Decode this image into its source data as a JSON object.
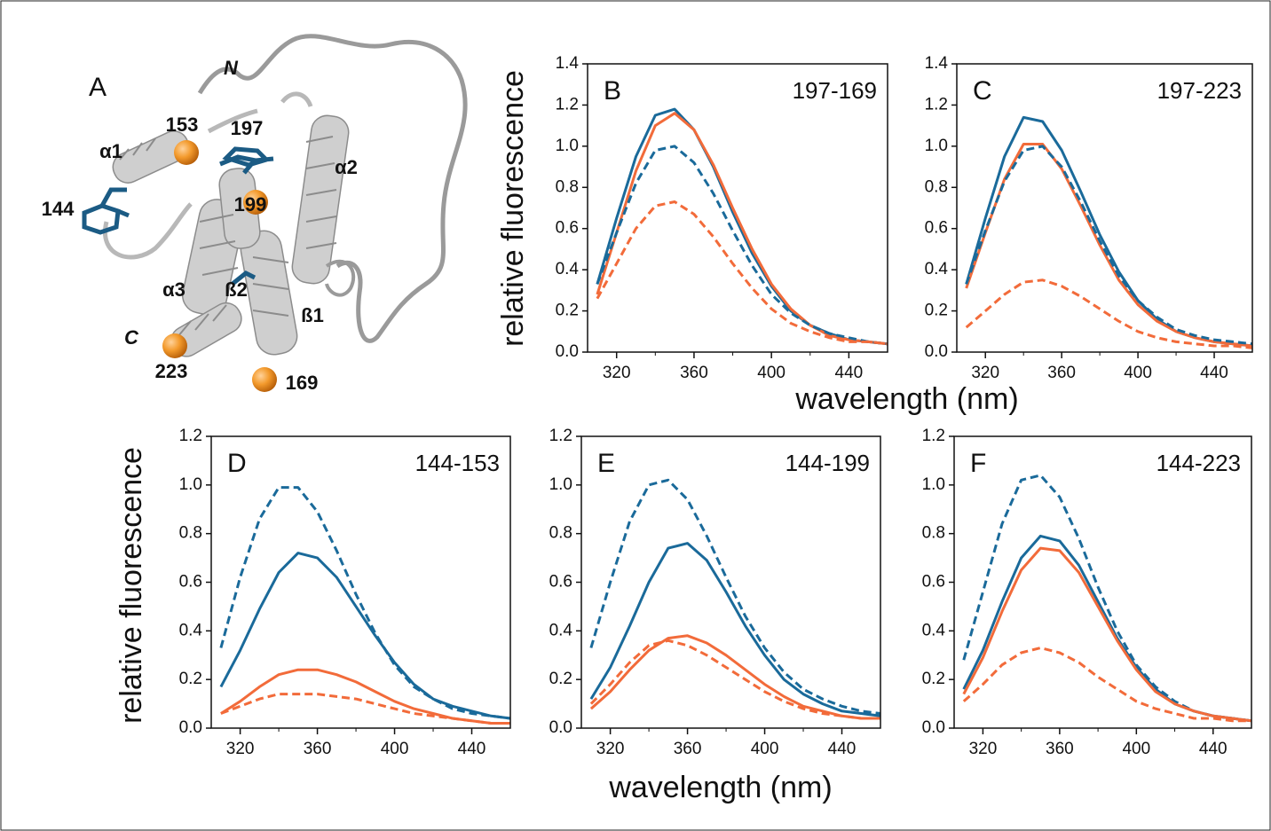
{
  "structure": {
    "panel": "A",
    "labels": [
      "N",
      "153",
      "197",
      "α1",
      "144",
      "199",
      "α2",
      "α3",
      "ß2",
      "ß1",
      "C",
      "223",
      "169"
    ]
  },
  "chart_data": [
    {
      "type": "line",
      "panel": "B",
      "title": "197-169",
      "ylabel": "relative fluorescence",
      "xlabel": "wavelength (nm)",
      "x": [
        310,
        320,
        330,
        340,
        350,
        360,
        370,
        380,
        390,
        400,
        410,
        420,
        430,
        440,
        450,
        460
      ],
      "xlim": [
        305,
        460
      ],
      "xticks": [
        320,
        360,
        400,
        440
      ],
      "xminorticks": [
        340,
        380,
        420
      ],
      "ylim": [
        0,
        1.4
      ],
      "yticks": [
        {
          "value": 0,
          "label": "0.0"
        },
        {
          "value": 0.2,
          "label": "0.2"
        },
        {
          "value": 0.4,
          "label": "0.4"
        },
        {
          "value": 0.6,
          "label": "0.6"
        },
        {
          "value": 0.8,
          "label": "0.8"
        },
        {
          "value": 1,
          "label": "1.0"
        },
        {
          "value": 1.2,
          "label": "1.2"
        },
        {
          "value": 1.4,
          "label": "1.4"
        }
      ],
      "series": [
        {
          "color": "#1a6a9a",
          "dashed": false,
          "values": [
            0.33,
            0.65,
            0.95,
            1.15,
            1.18,
            1.08,
            0.9,
            0.68,
            0.48,
            0.32,
            0.2,
            0.13,
            0.09,
            0.06,
            0.05,
            0.04
          ]
        },
        {
          "color": "#f26b3a",
          "dashed": false,
          "values": [
            0.28,
            0.58,
            0.88,
            1.1,
            1.16,
            1.08,
            0.91,
            0.7,
            0.5,
            0.33,
            0.21,
            0.13,
            0.08,
            0.06,
            0.05,
            0.04
          ]
        },
        {
          "color": "#1a6a9a",
          "dashed": true,
          "values": [
            0.33,
            0.58,
            0.82,
            0.98,
            1.0,
            0.92,
            0.77,
            0.59,
            0.42,
            0.28,
            0.19,
            0.13,
            0.09,
            0.07,
            0.05,
            0.04
          ]
        },
        {
          "color": "#f26b3a",
          "dashed": true,
          "values": [
            0.26,
            0.43,
            0.6,
            0.71,
            0.73,
            0.67,
            0.56,
            0.43,
            0.31,
            0.21,
            0.14,
            0.1,
            0.07,
            0.05,
            0.05,
            0.04
          ]
        }
      ]
    },
    {
      "type": "line",
      "panel": "C",
      "title": "197-223",
      "x": [
        310,
        320,
        330,
        340,
        350,
        360,
        370,
        380,
        390,
        400,
        410,
        420,
        430,
        440,
        450,
        460
      ],
      "xlim": [
        305,
        460
      ],
      "xticks": [
        320,
        360,
        400,
        440
      ],
      "xminorticks": [
        340,
        380,
        420
      ],
      "ylim": [
        0,
        1.4
      ],
      "yticks": [
        {
          "value": 0,
          "label": "0.0"
        },
        {
          "value": 0.2,
          "label": "0.2"
        },
        {
          "value": 0.4,
          "label": "0.4"
        },
        {
          "value": 0.6,
          "label": "0.6"
        },
        {
          "value": 0.8,
          "label": "0.8"
        },
        {
          "value": 1,
          "label": "1.0"
        },
        {
          "value": 1.2,
          "label": "1.2"
        },
        {
          "value": 1.4,
          "label": "1.4"
        }
      ],
      "series": [
        {
          "color": "#1a6a9a",
          "dashed": false,
          "values": [
            0.33,
            0.65,
            0.95,
            1.14,
            1.12,
            0.98,
            0.78,
            0.57,
            0.39,
            0.25,
            0.16,
            0.1,
            0.07,
            0.05,
            0.04,
            0.03
          ]
        },
        {
          "color": "#f26b3a",
          "dashed": false,
          "values": [
            0.31,
            0.58,
            0.84,
            1.01,
            1.01,
            0.89,
            0.71,
            0.52,
            0.35,
            0.23,
            0.15,
            0.1,
            0.07,
            0.05,
            0.04,
            0.03
          ]
        },
        {
          "color": "#1a6a9a",
          "dashed": true,
          "values": [
            0.33,
            0.59,
            0.83,
            0.98,
            1.0,
            0.9,
            0.73,
            0.54,
            0.37,
            0.25,
            0.17,
            0.11,
            0.08,
            0.06,
            0.05,
            0.04
          ]
        },
        {
          "color": "#f26b3a",
          "dashed": true,
          "values": [
            0.12,
            0.2,
            0.28,
            0.34,
            0.35,
            0.32,
            0.27,
            0.21,
            0.15,
            0.1,
            0.07,
            0.05,
            0.04,
            0.03,
            0.03,
            0.02
          ]
        }
      ]
    },
    {
      "type": "line",
      "panel": "D",
      "title": "144-153",
      "ylabel": "relative fluorescence",
      "x": [
        310,
        320,
        330,
        340,
        350,
        360,
        370,
        380,
        390,
        400,
        410,
        420,
        430,
        440,
        450,
        460
      ],
      "xlim": [
        305,
        460
      ],
      "xticks": [
        320,
        360,
        400,
        440
      ],
      "xminorticks": [
        340,
        380,
        420
      ],
      "ylim": [
        0,
        1.2
      ],
      "yticks": [
        {
          "value": 0,
          "label": "0.0"
        },
        {
          "value": 0.2,
          "label": "0.2"
        },
        {
          "value": 0.4,
          "label": "0.4"
        },
        {
          "value": 0.6,
          "label": "0.6"
        },
        {
          "value": 0.8,
          "label": "0.8"
        },
        {
          "value": 1,
          "label": "1.0"
        },
        {
          "value": 1.2,
          "label": "1.2"
        }
      ],
      "series": [
        {
          "color": "#1a6a9a",
          "dashed": true,
          "values": [
            0.33,
            0.62,
            0.86,
            0.99,
            0.99,
            0.89,
            0.73,
            0.55,
            0.39,
            0.26,
            0.17,
            0.12,
            0.08,
            0.06,
            0.05,
            0.04
          ]
        },
        {
          "color": "#1a6a9a",
          "dashed": false,
          "values": [
            0.17,
            0.32,
            0.49,
            0.64,
            0.72,
            0.7,
            0.62,
            0.5,
            0.38,
            0.27,
            0.18,
            0.12,
            0.09,
            0.07,
            0.05,
            0.04
          ]
        },
        {
          "color": "#f26b3a",
          "dashed": false,
          "values": [
            0.06,
            0.11,
            0.17,
            0.22,
            0.24,
            0.24,
            0.22,
            0.19,
            0.15,
            0.11,
            0.08,
            0.06,
            0.04,
            0.03,
            0.02,
            0.02
          ]
        },
        {
          "color": "#f26b3a",
          "dashed": true,
          "values": [
            0.06,
            0.09,
            0.12,
            0.14,
            0.14,
            0.14,
            0.13,
            0.12,
            0.1,
            0.08,
            0.06,
            0.05,
            0.04,
            0.03,
            0.02,
            0.02
          ]
        }
      ]
    },
    {
      "type": "line",
      "panel": "E",
      "title": "144-199",
      "xlabel": "wavelength (nm)",
      "x": [
        310,
        320,
        330,
        340,
        350,
        360,
        370,
        380,
        390,
        400,
        410,
        420,
        430,
        440,
        450,
        460
      ],
      "xlim": [
        305,
        460
      ],
      "xticks": [
        320,
        360,
        400,
        440
      ],
      "xminorticks": [
        340,
        380,
        420
      ],
      "ylim": [
        0,
        1.2
      ],
      "yticks": [
        {
          "value": 0,
          "label": "0.0"
        },
        {
          "value": 0.2,
          "label": "0.2"
        },
        {
          "value": 0.4,
          "label": "0.4"
        },
        {
          "value": 0.6,
          "label": "0.6"
        },
        {
          "value": 0.8,
          "label": "0.8"
        },
        {
          "value": 1,
          "label": "1.0"
        },
        {
          "value": 1.2,
          "label": "1.2"
        }
      ],
      "series": [
        {
          "color": "#1a6a9a",
          "dashed": true,
          "values": [
            0.33,
            0.6,
            0.85,
            1.0,
            1.02,
            0.94,
            0.79,
            0.62,
            0.46,
            0.33,
            0.23,
            0.16,
            0.12,
            0.09,
            0.07,
            0.06
          ]
        },
        {
          "color": "#1a6a9a",
          "dashed": false,
          "values": [
            0.12,
            0.25,
            0.42,
            0.6,
            0.74,
            0.76,
            0.69,
            0.56,
            0.42,
            0.3,
            0.2,
            0.14,
            0.1,
            0.07,
            0.06,
            0.05
          ]
        },
        {
          "color": "#f26b3a",
          "dashed": false,
          "values": [
            0.08,
            0.15,
            0.24,
            0.32,
            0.37,
            0.38,
            0.35,
            0.3,
            0.24,
            0.18,
            0.13,
            0.09,
            0.07,
            0.05,
            0.04,
            0.04
          ]
        },
        {
          "color": "#f26b3a",
          "dashed": true,
          "values": [
            0.1,
            0.18,
            0.27,
            0.34,
            0.36,
            0.34,
            0.3,
            0.25,
            0.2,
            0.15,
            0.11,
            0.08,
            0.06,
            0.05,
            0.04,
            0.04
          ]
        }
      ]
    },
    {
      "type": "line",
      "panel": "F",
      "title": "144-223",
      "x": [
        310,
        320,
        330,
        340,
        350,
        360,
        370,
        380,
        390,
        400,
        410,
        420,
        430,
        440,
        450,
        460
      ],
      "xlim": [
        305,
        460
      ],
      "xticks": [
        320,
        360,
        400,
        440
      ],
      "xminorticks": [
        340,
        380,
        420
      ],
      "ylim": [
        0,
        1.2
      ],
      "yticks": [
        {
          "value": 0,
          "label": "0.0"
        },
        {
          "value": 0.2,
          "label": "0.2"
        },
        {
          "value": 0.4,
          "label": "0.4"
        },
        {
          "value": 0.6,
          "label": "0.6"
        },
        {
          "value": 0.8,
          "label": "0.8"
        },
        {
          "value": 1,
          "label": "1.0"
        },
        {
          "value": 1.2,
          "label": "1.2"
        }
      ],
      "series": [
        {
          "color": "#1a6a9a",
          "dashed": true,
          "values": [
            0.28,
            0.56,
            0.84,
            1.02,
            1.04,
            0.95,
            0.78,
            0.58,
            0.4,
            0.26,
            0.17,
            0.11,
            0.07,
            0.05,
            0.04,
            0.03
          ]
        },
        {
          "color": "#1a6a9a",
          "dashed": false,
          "values": [
            0.16,
            0.32,
            0.52,
            0.7,
            0.79,
            0.77,
            0.67,
            0.52,
            0.37,
            0.25,
            0.16,
            0.1,
            0.07,
            0.05,
            0.04,
            0.03
          ]
        },
        {
          "color": "#f26b3a",
          "dashed": false,
          "values": [
            0.14,
            0.29,
            0.48,
            0.65,
            0.74,
            0.73,
            0.64,
            0.5,
            0.36,
            0.24,
            0.15,
            0.1,
            0.07,
            0.05,
            0.04,
            0.03
          ]
        },
        {
          "color": "#f26b3a",
          "dashed": true,
          "values": [
            0.11,
            0.18,
            0.26,
            0.31,
            0.33,
            0.31,
            0.27,
            0.21,
            0.16,
            0.11,
            0.08,
            0.06,
            0.04,
            0.04,
            0.03,
            0.03
          ]
        }
      ]
    }
  ]
}
